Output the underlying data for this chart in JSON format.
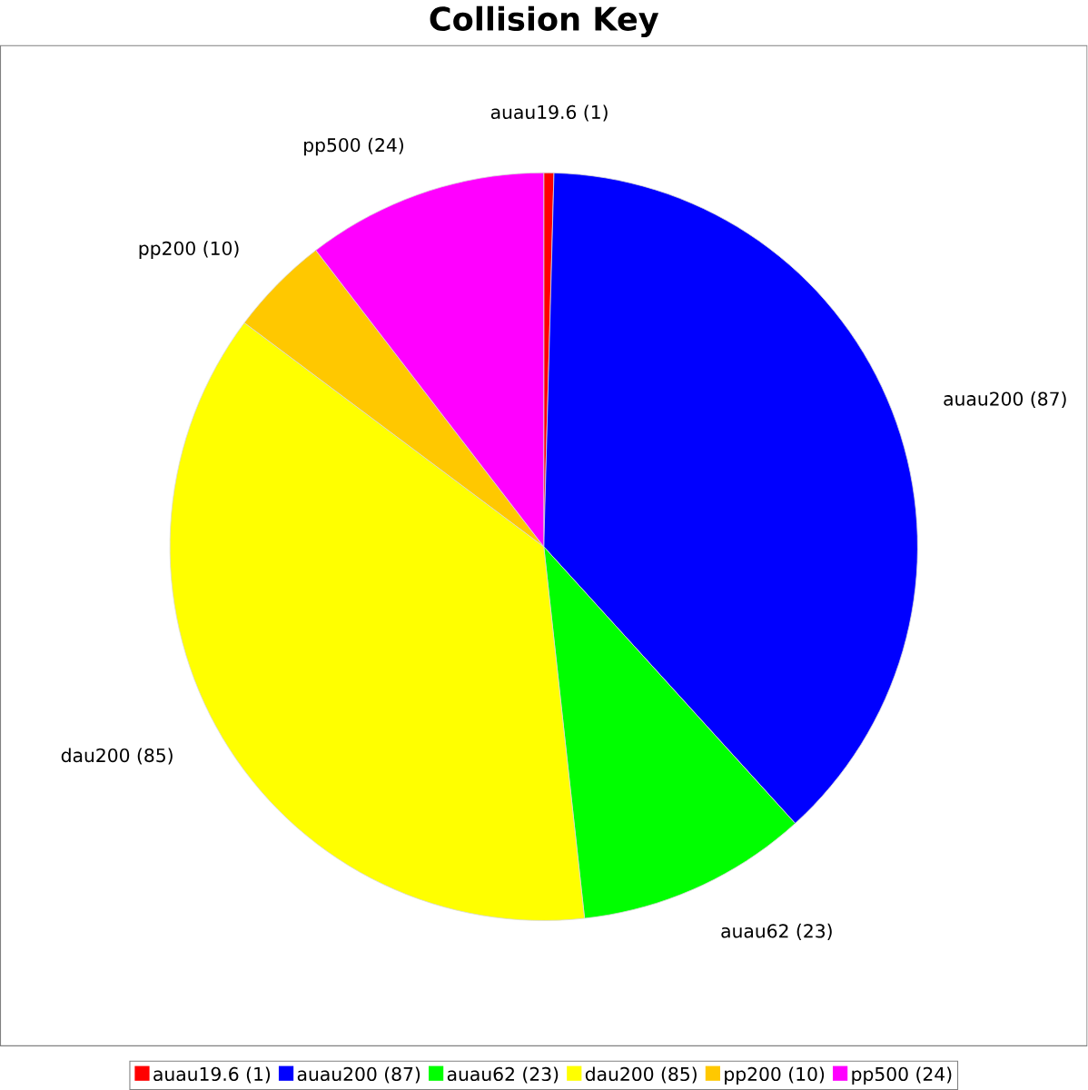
{
  "chart_data": {
    "type": "pie",
    "title": "Collision Key",
    "categories": [
      "auau19.6",
      "auau200",
      "auau62",
      "dau200",
      "pp200",
      "pp500"
    ],
    "values": [
      1,
      87,
      23,
      85,
      10,
      24
    ],
    "value_labels": [
      "(1)",
      "(87)",
      "(23)",
      "(85)",
      "(10)",
      "(24)"
    ],
    "colors": [
      "#ff0000",
      "#0000ff",
      "#00ff00",
      "#ffff00",
      "#ffc800",
      "#ff00ff"
    ],
    "legend": "bottom"
  }
}
